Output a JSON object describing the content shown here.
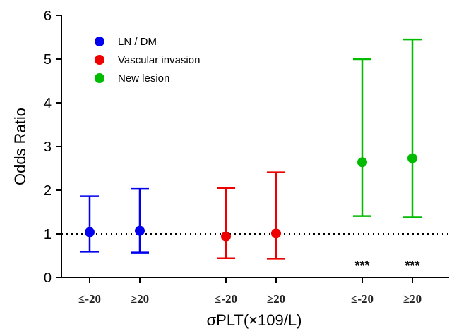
{
  "chart_data": {
    "type": "scatter",
    "ylabel": "Odds Ratio",
    "xlabel": "σPLT(×109/L)",
    "ylim": [
      0,
      6
    ],
    "yticks": [
      0,
      1,
      2,
      3,
      4,
      5,
      6
    ],
    "reference_line": 1,
    "legend_position": "top-left",
    "series": [
      {
        "name": "LN / DM",
        "color": "#0000ee",
        "points": [
          {
            "category": "≤-20",
            "value": 1.04,
            "lower": 0.59,
            "upper": 1.86,
            "significance": ""
          },
          {
            "category": "≥20",
            "value": 1.07,
            "lower": 0.57,
            "upper": 2.03,
            "significance": ""
          }
        ]
      },
      {
        "name": "Vascular invasion",
        "color": "#ee0000",
        "points": [
          {
            "category": "≤-20",
            "value": 0.94,
            "lower": 0.44,
            "upper": 2.05,
            "significance": ""
          },
          {
            "category": "≥20",
            "value": 1.01,
            "lower": 0.43,
            "upper": 2.41,
            "significance": ""
          }
        ]
      },
      {
        "name": "New lesion",
        "color": "#00bb00",
        "points": [
          {
            "category": "≤-20",
            "value": 2.64,
            "lower": 1.41,
            "upper": 5.0,
            "significance": "***"
          },
          {
            "category": "≥20",
            "value": 2.73,
            "lower": 1.38,
            "upper": 5.45,
            "significance": "***"
          }
        ]
      }
    ]
  }
}
